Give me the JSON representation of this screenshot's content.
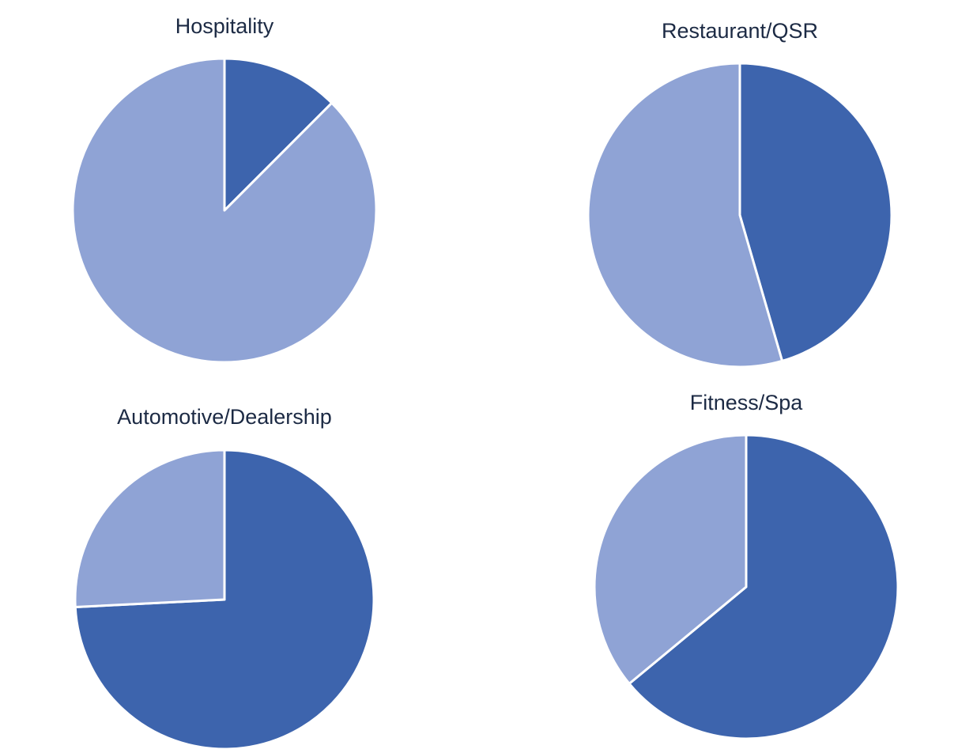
{
  "colors": {
    "dark": "#3d64ad",
    "light": "#8fa3d5",
    "stroke": "#ffffff",
    "text": "#1c2a44"
  },
  "chart_data": [
    {
      "type": "pie",
      "title": "Hospitality",
      "values": [
        12.5,
        87.5
      ],
      "colors": [
        "#3d64ad",
        "#8fa3d5"
      ],
      "start_angle_deg": 0
    },
    {
      "type": "pie",
      "title": "Restaurant/QSR",
      "values": [
        45.5,
        54.5
      ],
      "colors": [
        "#3d64ad",
        "#8fa3d5"
      ],
      "start_angle_deg": 0
    },
    {
      "type": "pie",
      "title": "Automotive/Dealership",
      "values": [
        74.2,
        25.8
      ],
      "colors": [
        "#3d64ad",
        "#8fa3d5"
      ],
      "start_angle_deg": 0
    },
    {
      "type": "pie",
      "title": "Fitness/Spa",
      "values": [
        64.0,
        36.0
      ],
      "colors": [
        "#3d64ad",
        "#8fa3d5"
      ],
      "start_angle_deg": 0
    }
  ]
}
